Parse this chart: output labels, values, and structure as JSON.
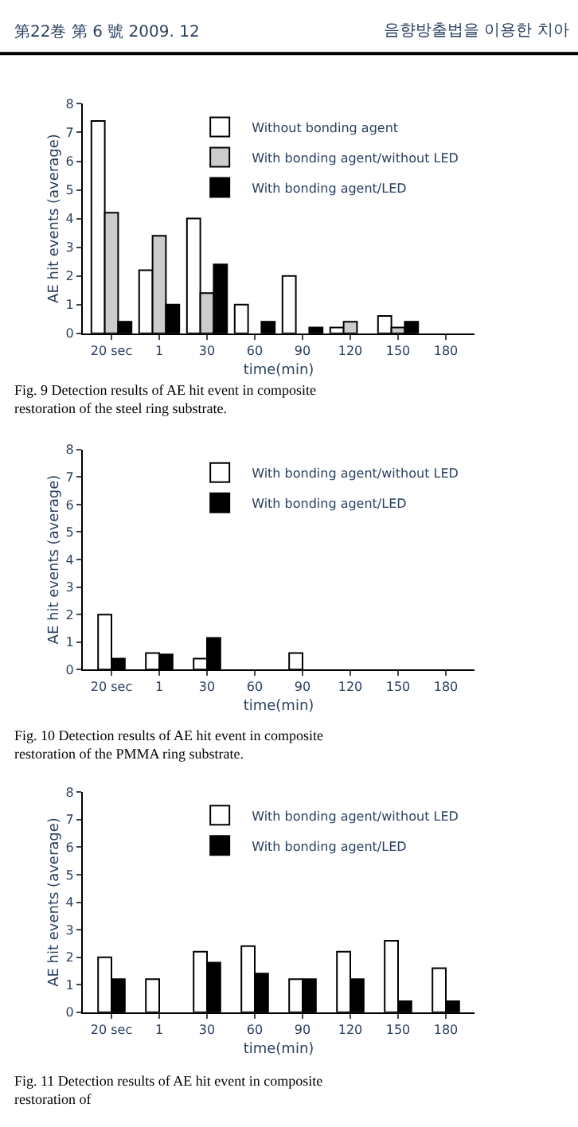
{
  "chart_data": [
    {
      "type": "bar",
      "annotations": [
        "第22巻 第 6 號 2009. 12",
        "음향방출법을 이용한 치아",
        "Fig. 9  Detection results of AE hit event in composite restoration of the steel ring substrate."
      ],
      "xlabel": "time(min)",
      "ylabel": "AE hit events (average)",
      "categories": [
        "20 sec",
        "1",
        "30",
        "60",
        "90",
        "120",
        "150",
        "180"
      ],
      "series": [
        {
          "name": "Without bonding agent",
          "color": "#ffffff",
          "values": [
            7.4,
            2.2,
            4.0,
            1.0,
            2.0,
            0.2,
            0.6,
            0
          ]
        },
        {
          "name": "With bonding agent/without LED",
          "color": "#cccccc",
          "values": [
            4.2,
            3.4,
            1.4,
            0,
            0,
            0.4,
            0.2,
            0
          ]
        },
        {
          "name": "With bonding agent/LED",
          "color": "#000000",
          "values": [
            0.4,
            1.0,
            2.4,
            0.4,
            0.2,
            0,
            0.4,
            0
          ]
        }
      ],
      "ylim": [
        0,
        8
      ],
      "yticks": [
        0,
        1,
        2,
        3,
        4,
        5,
        6,
        7,
        8
      ],
      "legend": "top right"
    },
    {
      "type": "bar",
      "annotations": [
        "Fig. 10  Detection results of AE hit event in composite restoration of the PMMA ring substrate."
      ],
      "xlabel": "time(min)",
      "ylabel": "AE hit events (average)",
      "categories": [
        "20 sec",
        "1",
        "30",
        "60",
        "90",
        "120",
        "150",
        "180"
      ],
      "series": [
        {
          "name": "With bonding agent/without LED",
          "color": "#ffffff",
          "values": [
            2.0,
            0.6,
            0.4,
            0,
            0.6,
            0,
            0,
            0
          ]
        },
        {
          "name": "With bonding agent/LED",
          "color": "#000000",
          "values": [
            0.4,
            0.55,
            1.15,
            0,
            0,
            0,
            0,
            0
          ]
        }
      ],
      "ylim": [
        0,
        8
      ],
      "yticks": [
        0,
        1,
        2,
        3,
        4,
        5,
        6,
        7,
        8
      ],
      "legend": "top right"
    },
    {
      "type": "bar",
      "annotations": [
        "Fig. 11  Detection results of AE hit event in composite restoration of"
      ],
      "xlabel": "time(min)",
      "ylabel": "AE hit events (average)",
      "categories": [
        "20 sec",
        "1",
        "30",
        "60",
        "90",
        "120",
        "150",
        "180"
      ],
      "series": [
        {
          "name": "With bonding agent/without LED",
          "color": "#ffffff",
          "values": [
            2.0,
            1.2,
            2.2,
            2.4,
            1.2,
            2.2,
            2.6,
            1.6
          ]
        },
        {
          "name": "With bonding agent/LED",
          "color": "#000000",
          "values": [
            1.2,
            0,
            1.8,
            1.4,
            1.2,
            1.2,
            0.4,
            0.4
          ]
        }
      ],
      "ylim": [
        0,
        8
      ],
      "yticks": [
        0,
        1,
        2,
        3,
        4,
        5,
        6,
        7,
        8
      ],
      "legend": "top right"
    }
  ]
}
